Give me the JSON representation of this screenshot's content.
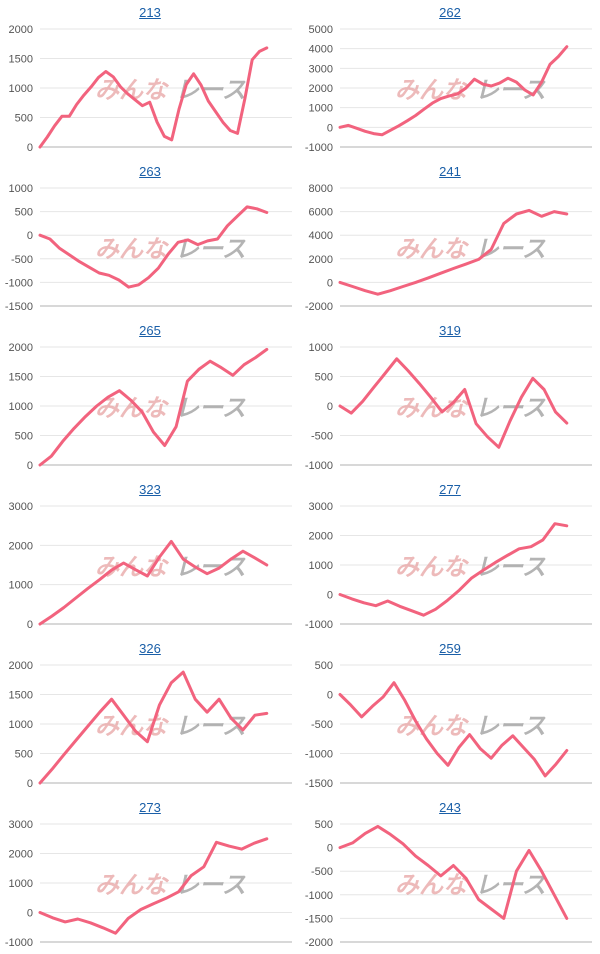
{
  "colors": {
    "line": "#f2637e",
    "grid": "#e6e6e6",
    "axis": "#b0b0b0",
    "title": "#1a5fa8",
    "watermark_left": "#e7a3a3",
    "watermark_right": "#9c9c9c"
  },
  "watermark": {
    "left": "みんな",
    "right": "レース"
  },
  "chart_data": [
    {
      "type": "line",
      "title": "213",
      "yticks": [
        "2000",
        "1500",
        "1000",
        "500",
        "0"
      ],
      "ylim": [
        0,
        2000
      ],
      "y": [
        0,
        170,
        360,
        520,
        520,
        720,
        880,
        1020,
        1180,
        1280,
        1190,
        1020,
        900,
        800,
        700,
        760,
        420,
        180,
        120,
        640,
        1060,
        1240,
        1050,
        780,
        600,
        420,
        280,
        230,
        820,
        1480,
        1620,
        1680
      ]
    },
    {
      "type": "line",
      "title": "262",
      "yticks": [
        "5000",
        "4000",
        "3000",
        "2000",
        "1000",
        "0",
        "-1000"
      ],
      "ylim": [
        -1000,
        5000
      ],
      "y": [
        0,
        100,
        -50,
        -200,
        -320,
        -380,
        -150,
        80,
        330,
        600,
        920,
        1230,
        1460,
        1600,
        1700,
        2000,
        2450,
        2200,
        2100,
        2250,
        2500,
        2300,
        1900,
        1650,
        2300,
        3200,
        3600,
        4100
      ]
    },
    {
      "type": "line",
      "title": "263",
      "yticks": [
        "1000",
        "500",
        "0",
        "-500",
        "-1000",
        "-1500"
      ],
      "ylim": [
        -1500,
        1000
      ],
      "y": [
        0,
        -80,
        -280,
        -420,
        -560,
        -680,
        -800,
        -850,
        -950,
        -1100,
        -1050,
        -900,
        -700,
        -400,
        -150,
        -100,
        -200,
        -120,
        -80,
        200,
        400,
        600,
        560,
        480
      ]
    },
    {
      "type": "line",
      "title": "241",
      "yticks": [
        "8000",
        "6000",
        "4000",
        "2000",
        "0",
        "-2000"
      ],
      "ylim": [
        -2000,
        8000
      ],
      "y": [
        0,
        -350,
        -700,
        -1000,
        -700,
        -350,
        0,
        380,
        780,
        1180,
        1550,
        1950,
        2800,
        5000,
        5800,
        6100,
        5600,
        6000,
        5800
      ]
    },
    {
      "type": "line",
      "title": "265",
      "yticks": [
        "2000",
        "1500",
        "1000",
        "500",
        "0"
      ],
      "ylim": [
        0,
        2000
      ],
      "y": [
        0,
        150,
        400,
        620,
        820,
        1000,
        1150,
        1260,
        1100,
        900,
        560,
        330,
        650,
        1420,
        1620,
        1760,
        1650,
        1520,
        1700,
        1820,
        1960
      ]
    },
    {
      "type": "line",
      "title": "319",
      "yticks": [
        "1000",
        "500",
        "0",
        "-500",
        "-1000"
      ],
      "ylim": [
        -1000,
        1000
      ],
      "y": [
        0,
        -120,
        80,
        320,
        560,
        800,
        600,
        380,
        150,
        -100,
        60,
        280,
        -300,
        -520,
        -700,
        -250,
        150,
        470,
        280,
        -100,
        -290
      ]
    },
    {
      "type": "line",
      "title": "323",
      "yticks": [
        "3000",
        "2000",
        "1000",
        "0"
      ],
      "ylim": [
        0,
        3000
      ],
      "y": [
        0,
        200,
        420,
        660,
        900,
        1130,
        1370,
        1550,
        1380,
        1220,
        1700,
        2100,
        1650,
        1450,
        1280,
        1420,
        1650,
        1850,
        1680,
        1500
      ]
    },
    {
      "type": "line",
      "title": "277",
      "yticks": [
        "3000",
        "2000",
        "1000",
        "0",
        "-1000"
      ],
      "ylim": [
        -1000,
        3000
      ],
      "y": [
        0,
        -150,
        -280,
        -380,
        -220,
        -400,
        -550,
        -700,
        -500,
        -200,
        150,
        550,
        820,
        1080,
        1320,
        1550,
        1620,
        1850,
        2400,
        2330
      ]
    },
    {
      "type": "line",
      "title": "326",
      "yticks": [
        "2000",
        "1500",
        "1000",
        "500",
        "0"
      ],
      "ylim": [
        0,
        2000
      ],
      "y": [
        0,
        230,
        480,
        720,
        960,
        1200,
        1420,
        1150,
        880,
        700,
        1320,
        1700,
        1880,
        1420,
        1200,
        1420,
        1100,
        900,
        1150,
        1180
      ]
    },
    {
      "type": "line",
      "title": "259",
      "yticks": [
        "500",
        "0",
        "-500",
        "-1000",
        "-1500"
      ],
      "ylim": [
        -1500,
        500
      ],
      "y": [
        0,
        -180,
        -380,
        -200,
        -40,
        200,
        -100,
        -450,
        -750,
        -1000,
        -1200,
        -900,
        -680,
        -920,
        -1080,
        -860,
        -700,
        -900,
        -1100,
        -1380,
        -1180,
        -950
      ]
    },
    {
      "type": "line",
      "title": "273",
      "yticks": [
        "3000",
        "2000",
        "1000",
        "0",
        "-1000"
      ],
      "ylim": [
        -1000,
        3000
      ],
      "y": [
        0,
        -180,
        -320,
        -220,
        -350,
        -520,
        -700,
        -200,
        100,
        300,
        480,
        700,
        1250,
        1550,
        2380,
        2250,
        2150,
        2350,
        2500
      ]
    },
    {
      "type": "line",
      "title": "243",
      "yticks": [
        "500",
        "0",
        "-500",
        "-1000",
        "-1500",
        "-2000"
      ],
      "ylim": [
        -2000,
        500
      ],
      "y": [
        0,
        100,
        300,
        450,
        280,
        80,
        -180,
        -380,
        -600,
        -380,
        -650,
        -1100,
        -1300,
        -1500,
        -500,
        -60,
        -500,
        -1000,
        -1500
      ]
    }
  ]
}
